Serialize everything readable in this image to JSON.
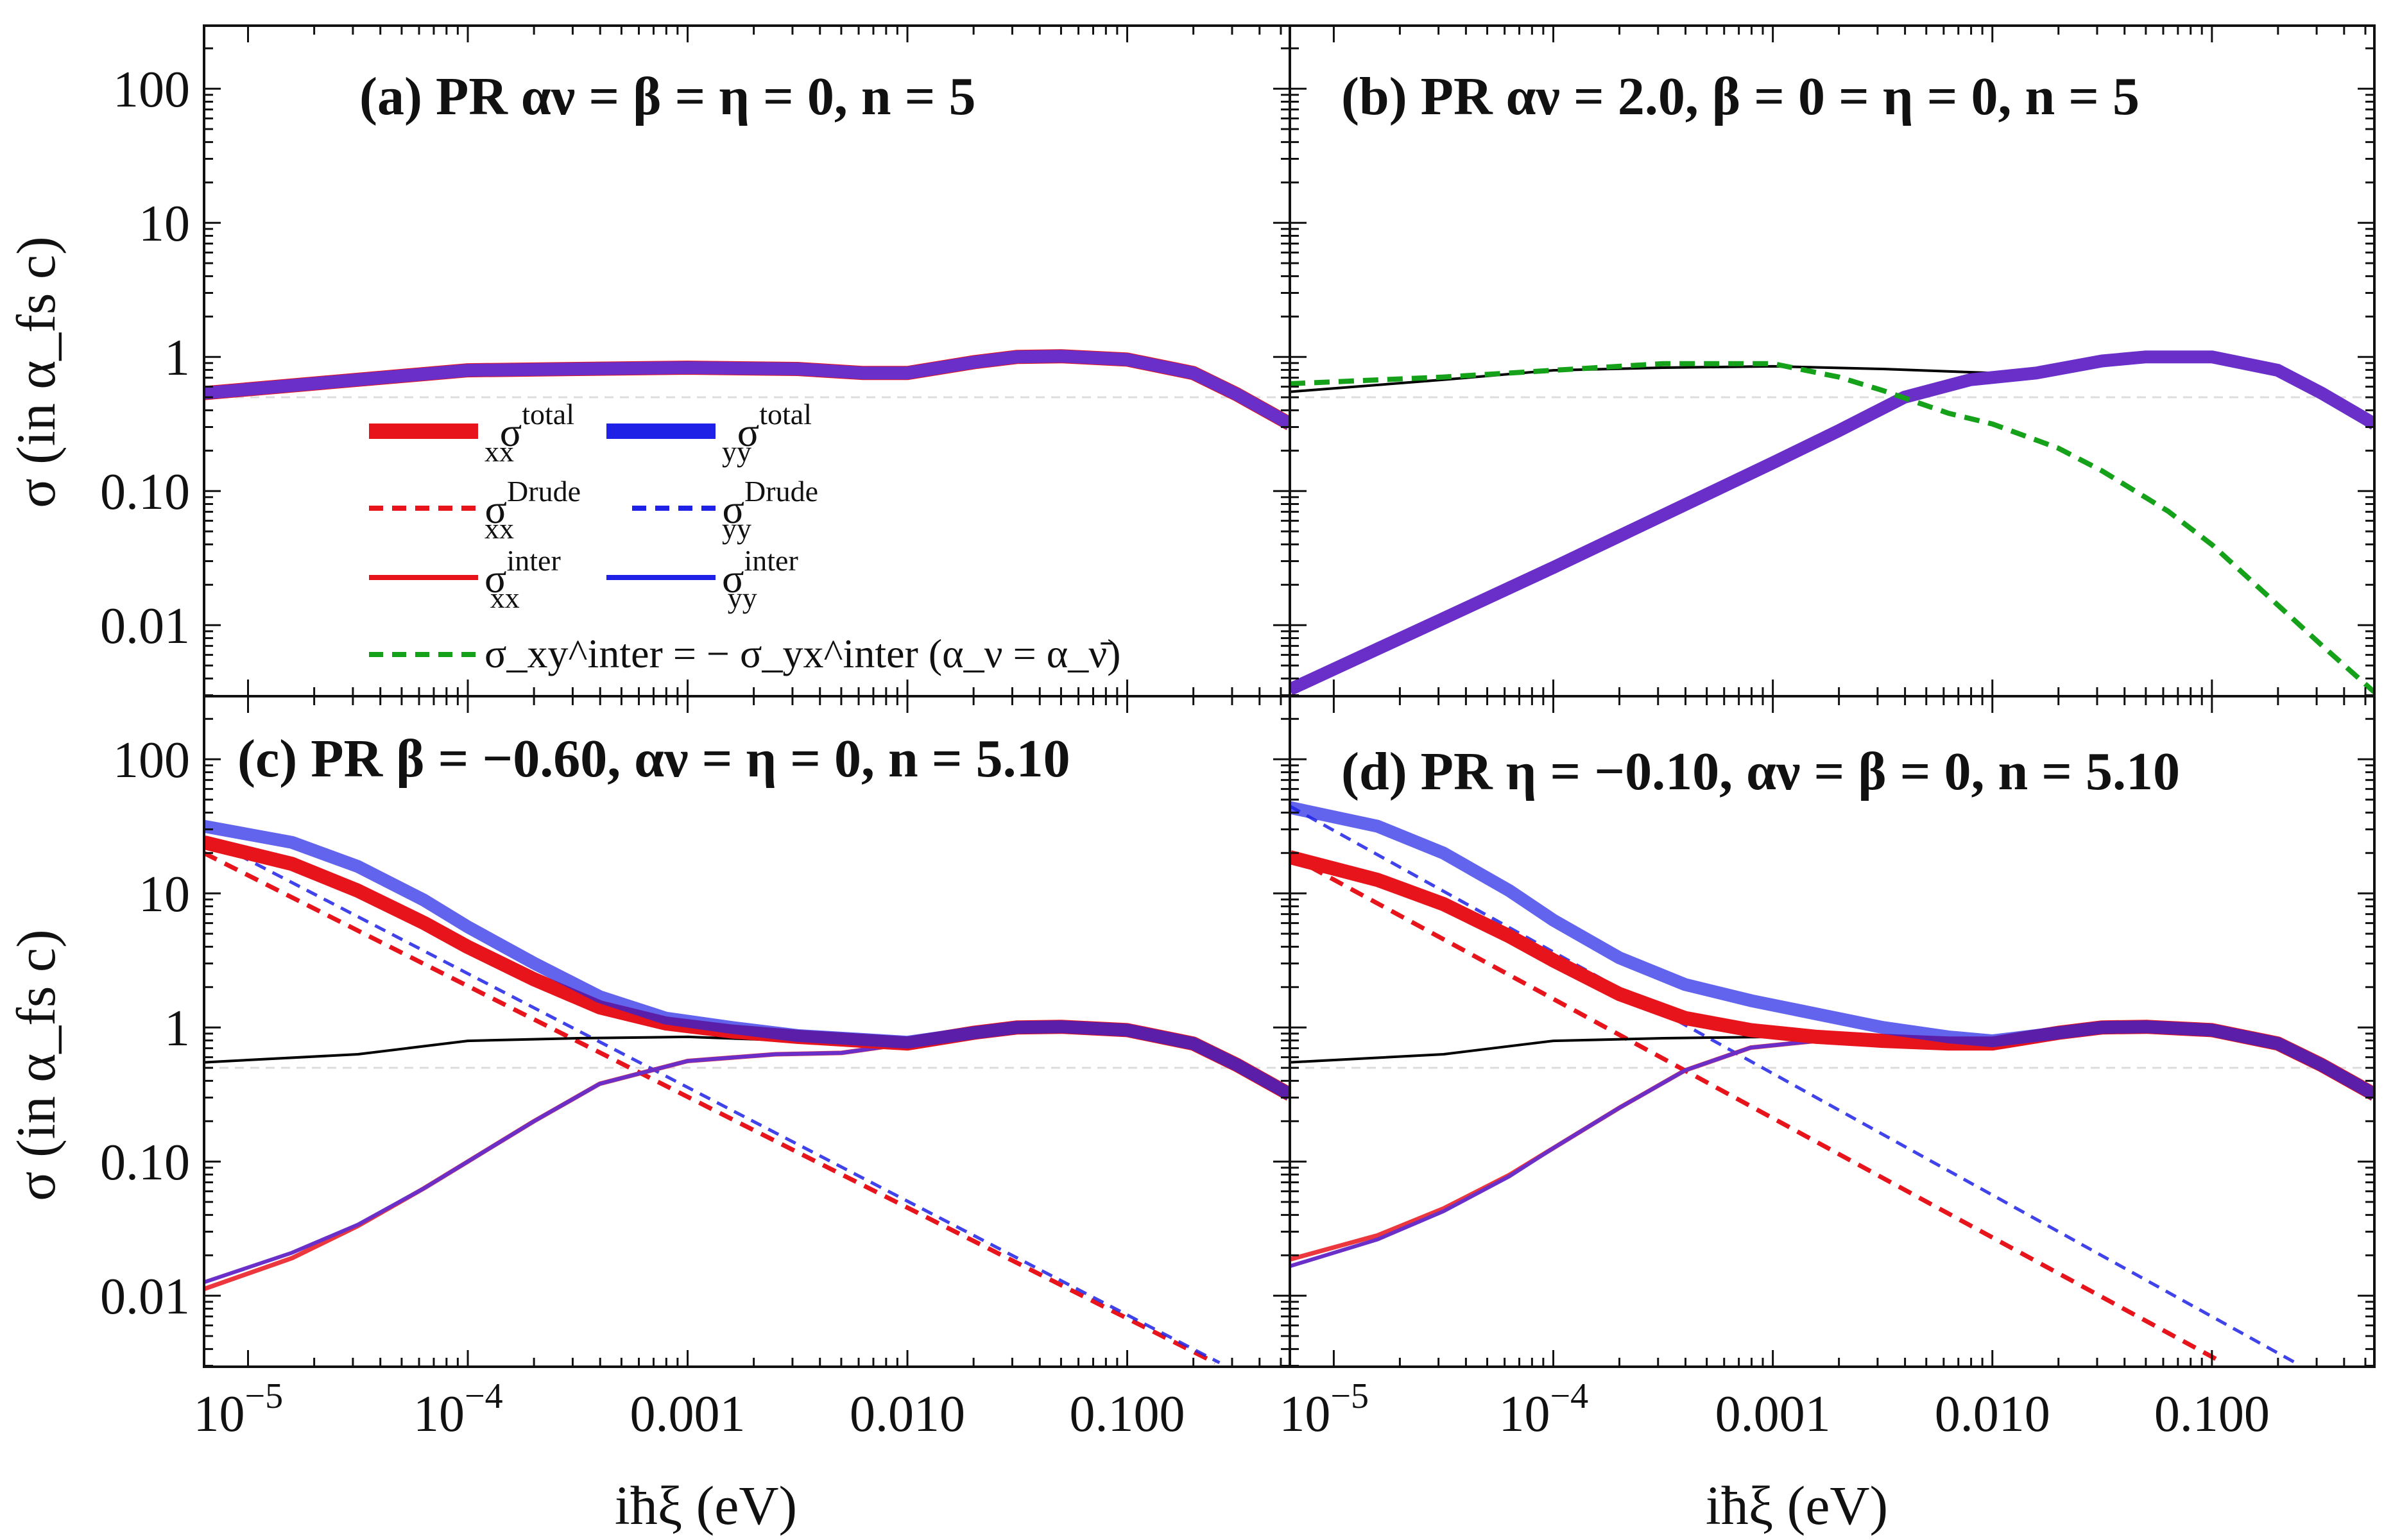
{
  "colors": {
    "xx": "#e8141b",
    "yy": "#1f22e6",
    "blend": "#6a2fc8",
    "xy": "#16a11a",
    "vacuum": "#000000",
    "frame": "#111111"
  },
  "axes": {
    "xlabel": "iħξ (eV)",
    "ylabel": "σ (in α_fs c)",
    "xlim_log10": [
      -5.2,
      -0.26
    ],
    "ylim_log10": [
      -2.53,
      2.47
    ],
    "xscale": "log",
    "yscale": "log",
    "x_ticks": [
      {
        "exp": -5,
        "label": "10",
        "sup": "−5"
      },
      {
        "exp": -4,
        "label": "10",
        "sup": "−4"
      },
      {
        "exp": -3,
        "label": "0.001",
        "sup": ""
      },
      {
        "exp": -2,
        "label": "0.010",
        "sup": ""
      },
      {
        "exp": -1,
        "label": "0.100",
        "sup": ""
      }
    ],
    "y_ticks": [
      {
        "exp": 2,
        "label": "100"
      },
      {
        "exp": 1,
        "label": "10"
      },
      {
        "exp": 0,
        "label": "1"
      },
      {
        "exp": -1,
        "label": "0.10"
      },
      {
        "exp": -2,
        "label": "0.01"
      }
    ]
  },
  "legend": {
    "entries": [
      {
        "key": "total",
        "xx": "σ",
        "xx_sup": "total",
        "xx_sub": "xx",
        "yy": "σ",
        "yy_sup": "total",
        "yy_sub": "yy"
      },
      {
        "key": "drude",
        "xx": "σ",
        "xx_sup": "Drude",
        "xx_sub": "xx",
        "yy": "σ",
        "yy_sup": "Drude",
        "yy_sub": "yy"
      },
      {
        "key": "inter",
        "xx": "σ",
        "xx_sup": "inter",
        "xx_sub": "xx",
        "yy": "σ",
        "yy_sup": "inter",
        "yy_sub": "yy"
      }
    ],
    "xy_entry": "σ_xy^inter = − σ_yx^inter (α_ν = α_ν̄)"
  },
  "chart_data": [
    {
      "panel": "a",
      "type": "line",
      "title": "(a) PR αν = β = η = 0, n = 5",
      "series": [
        {
          "name": "sigma_total_xx",
          "style": "thick-xx",
          "x_log10": [
            -5.2,
            -4.5,
            -4,
            -3.5,
            -3,
            -2.5,
            -2.2,
            -2,
            -1.7,
            -1.5,
            -1.3,
            -1,
            -0.7,
            -0.5,
            -0.26
          ],
          "y_log10": [
            -0.27,
            -0.17,
            -0.1,
            -0.09,
            -0.08,
            -0.09,
            -0.12,
            -0.12,
            -0.04,
            0,
            0.005,
            -0.02,
            -0.12,
            -0.28,
            -0.5
          ]
        },
        {
          "name": "sigma_total_yy",
          "style": "thick-blend",
          "x_log10": [
            -5.2,
            -4.5,
            -4,
            -3.5,
            -3,
            -2.5,
            -2.2,
            -2,
            -1.7,
            -1.5,
            -1.3,
            -1,
            -0.7,
            -0.5,
            -0.26
          ],
          "y_log10": [
            -0.27,
            -0.17,
            -0.1,
            -0.09,
            -0.08,
            -0.09,
            -0.12,
            -0.12,
            -0.04,
            0,
            0.005,
            -0.02,
            -0.12,
            -0.28,
            -0.5
          ]
        }
      ]
    },
    {
      "panel": "b",
      "type": "line",
      "title": "(b) PR αν = 2.0, β = 0 = η = 0, n = 5",
      "series": [
        {
          "name": "sigma_vacuum",
          "style": "thin-black",
          "x_log10": [
            -5.2,
            -4.5,
            -4,
            -3.5,
            -3,
            -2.5,
            -2,
            -1.5,
            -1.3,
            -1,
            -0.7,
            -0.5,
            -0.26
          ],
          "y_log10": [
            -0.26,
            -0.17,
            -0.1,
            -0.08,
            -0.07,
            -0.09,
            -0.12,
            -0.04,
            0,
            0,
            -0.1,
            -0.27,
            -0.48
          ]
        },
        {
          "name": "sigma_total_xx_yy",
          "style": "thick-blend",
          "x_log10": [
            -5.2,
            -4.5,
            -4,
            -3.5,
            -3,
            -2.7,
            -2.4,
            -2.1,
            -1.8,
            -1.5,
            -1.3,
            -1,
            -0.7,
            -0.5,
            -0.26
          ],
          "y_log10": [
            -2.48,
            -1.95,
            -1.57,
            -1.18,
            -0.79,
            -0.55,
            -0.3,
            -0.17,
            -0.12,
            -0.03,
            0,
            0,
            -0.1,
            -0.27,
            -0.5
          ]
        },
        {
          "name": "sigma_xy_inter",
          "style": "dash-green",
          "x_log10": [
            -5.2,
            -4.5,
            -4,
            -3.5,
            -3,
            -2.7,
            -2.5,
            -2.2,
            -2,
            -1.7,
            -1.5,
            -1.2,
            -1,
            -0.7,
            -0.5,
            -0.26
          ],
          "y_log10": [
            -0.2,
            -0.15,
            -0.1,
            -0.05,
            -0.05,
            -0.15,
            -0.25,
            -0.42,
            -0.5,
            -0.68,
            -0.85,
            -1.15,
            -1.4,
            -1.85,
            -2.15,
            -2.5
          ]
        }
      ]
    },
    {
      "panel": "c",
      "type": "line",
      "title": "(c) PR β = −0.60, αν = η = 0, n = 5.10",
      "series": [
        {
          "name": "sigma_drude_xx",
          "style": "dash-xx",
          "x_log10": [
            -5.2,
            -0.6
          ],
          "y_log10": [
            1.3,
            -2.5
          ]
        },
        {
          "name": "sigma_drude_yy",
          "style": "dash-yy",
          "x_log10": [
            -5.2,
            -0.58
          ],
          "y_log10": [
            1.42,
            -2.5
          ]
        },
        {
          "name": "sigma_vacuum",
          "style": "thin-black",
          "x_log10": [
            -5.2,
            -4.5,
            -4,
            -3.5,
            -3,
            -2.5,
            -2,
            -1.5,
            -1.3,
            -1,
            -0.7,
            -0.5,
            -0.26
          ],
          "y_log10": [
            -0.26,
            -0.2,
            -0.1,
            -0.08,
            -0.07,
            -0.1,
            -0.12,
            -0.04,
            0,
            0,
            -0.1,
            -0.27,
            -0.48
          ]
        },
        {
          "name": "sigma_inter_xx",
          "style": "thin-xx",
          "x_log10": [
            -5.2,
            -4.8,
            -4.5,
            -4.2,
            -4,
            -3.7,
            -3.4,
            -3,
            -2.6,
            -2.3,
            -2,
            -1.7,
            -1.5,
            -1.3,
            -1,
            -0.7,
            -0.5,
            -0.26
          ],
          "y_log10": [
            -1.95,
            -1.72,
            -1.48,
            -1.2,
            -1.0,
            -0.7,
            -0.42,
            -0.25,
            -0.2,
            -0.19,
            -0.12,
            -0.03,
            0,
            0.005,
            -0.02,
            -0.12,
            -0.28,
            -0.5
          ]
        },
        {
          "name": "sigma_inter_yy",
          "style": "thin-blend",
          "x_log10": [
            -5.2,
            -4.8,
            -4.5,
            -4.2,
            -4,
            -3.7,
            -3.4,
            -3,
            -2.6,
            -2.3,
            -2,
            -1.7,
            -1.5,
            -1.3,
            -1,
            -0.7,
            -0.5,
            -0.26
          ],
          "y_log10": [
            -1.9,
            -1.68,
            -1.47,
            -1.2,
            -1.0,
            -0.7,
            -0.42,
            -0.25,
            -0.2,
            -0.19,
            -0.12,
            -0.03,
            0,
            0.005,
            -0.02,
            -0.12,
            -0.28,
            -0.5
          ]
        },
        {
          "name": "sigma_total_xx",
          "style": "thick-xx",
          "x_log10": [
            -5.2,
            -4.8,
            -4.5,
            -4.2,
            -4,
            -3.7,
            -3.4,
            -3.1,
            -2.8,
            -2.5,
            -2.2,
            -2,
            -1.7,
            -1.5,
            -1.3,
            -1,
            -0.7,
            -0.5,
            -0.26
          ],
          "y_log10": [
            1.38,
            1.22,
            1.02,
            0.78,
            0.6,
            0.36,
            0.15,
            0.03,
            -0.03,
            -0.07,
            -0.1,
            -0.12,
            -0.04,
            0,
            0.005,
            -0.02,
            -0.12,
            -0.28,
            -0.5
          ]
        },
        {
          "name": "sigma_total_yy",
          "style": "thick-yy-light",
          "x_log10": [
            -5.2,
            -4.8,
            -4.5,
            -4.2,
            -4,
            -3.7,
            -3.4,
            -3.1,
            -2.8,
            -2.5,
            -2.2,
            -2,
            -1.7,
            -1.5,
            -1.3,
            -1,
            -0.7,
            -0.5,
            -0.26
          ],
          "y_log10": [
            1.5,
            1.38,
            1.2,
            0.95,
            0.75,
            0.48,
            0.23,
            0.07,
            0,
            -0.06,
            -0.09,
            -0.11,
            -0.04,
            0,
            0.005,
            -0.02,
            -0.12,
            -0.28,
            -0.5
          ]
        }
      ]
    },
    {
      "panel": "d",
      "type": "line",
      "title": "(d) PR η = −0.10, αν = β = 0, n = 5.10",
      "series": [
        {
          "name": "sigma_drude_xx",
          "style": "dash-xx",
          "x_log10": [
            -5.2,
            -0.95
          ],
          "y_log10": [
            1.28,
            -2.5
          ]
        },
        {
          "name": "sigma_drude_yy",
          "style": "dash-yy",
          "x_log10": [
            -5.2,
            -0.62
          ],
          "y_log10": [
            1.65,
            -2.5
          ]
        },
        {
          "name": "sigma_vacuum",
          "style": "thin-black",
          "x_log10": [
            -5.2,
            -4.5,
            -4,
            -3.5,
            -3,
            -2.5,
            -2,
            -1.5,
            -1.3,
            -1,
            -0.7,
            -0.5,
            -0.26
          ],
          "y_log10": [
            -0.26,
            -0.2,
            -0.1,
            -0.08,
            -0.07,
            -0.1,
            -0.12,
            -0.04,
            0,
            0,
            -0.1,
            -0.27,
            -0.48
          ]
        },
        {
          "name": "sigma_inter_xx",
          "style": "thin-xx",
          "x_log10": [
            -5.2,
            -4.8,
            -4.5,
            -4.2,
            -4,
            -3.7,
            -3.4,
            -3.1,
            -2.8,
            -2.5,
            -2.2,
            -2,
            -1.7,
            -1.5,
            -1.3,
            -1,
            -0.7,
            -0.5,
            -0.26
          ],
          "y_log10": [
            -1.73,
            -1.55,
            -1.35,
            -1.1,
            -0.9,
            -0.6,
            -0.32,
            -0.15,
            -0.1,
            -0.1,
            -0.12,
            -0.12,
            -0.04,
            0,
            0.005,
            -0.02,
            -0.12,
            -0.28,
            -0.5
          ]
        },
        {
          "name": "sigma_inter_yy",
          "style": "thin-blend",
          "x_log10": [
            -5.2,
            -4.8,
            -4.5,
            -4.2,
            -4,
            -3.7,
            -3.4,
            -3.1,
            -2.8,
            -2.5,
            -2.2,
            -2,
            -1.7,
            -1.5,
            -1.3,
            -1,
            -0.7,
            -0.5,
            -0.26
          ],
          "y_log10": [
            -1.78,
            -1.58,
            -1.37,
            -1.11,
            -0.9,
            -0.6,
            -0.32,
            -0.15,
            -0.1,
            -0.1,
            -0.12,
            -0.12,
            -0.04,
            0,
            0.005,
            -0.02,
            -0.12,
            -0.28,
            -0.5
          ]
        },
        {
          "name": "sigma_total_xx",
          "style": "thick-xx",
          "x_log10": [
            -5.2,
            -4.8,
            -4.5,
            -4.2,
            -4,
            -3.7,
            -3.4,
            -3.1,
            -2.8,
            -2.5,
            -2.2,
            -2,
            -1.7,
            -1.5,
            -1.3,
            -1,
            -0.7,
            -0.5,
            -0.26
          ],
          "y_log10": [
            1.27,
            1.1,
            0.92,
            0.68,
            0.5,
            0.25,
            0.07,
            -0.02,
            -0.07,
            -0.1,
            -0.12,
            -0.12,
            -0.04,
            0,
            0.005,
            -0.02,
            -0.12,
            -0.28,
            -0.5
          ]
        },
        {
          "name": "sigma_total_yy",
          "style": "thick-yy-light",
          "x_log10": [
            -5.2,
            -4.8,
            -4.5,
            -4.2,
            -4,
            -3.7,
            -3.4,
            -3.1,
            -2.8,
            -2.5,
            -2.2,
            -2,
            -1.7,
            -1.5,
            -1.3,
            -1,
            -0.7,
            -0.5,
            -0.26
          ],
          "y_log10": [
            1.64,
            1.5,
            1.3,
            1.02,
            0.8,
            0.52,
            0.32,
            0.2,
            0.1,
            0.0,
            -0.07,
            -0.1,
            -0.04,
            0,
            0.005,
            -0.02,
            -0.12,
            -0.28,
            -0.5
          ]
        }
      ]
    }
  ]
}
